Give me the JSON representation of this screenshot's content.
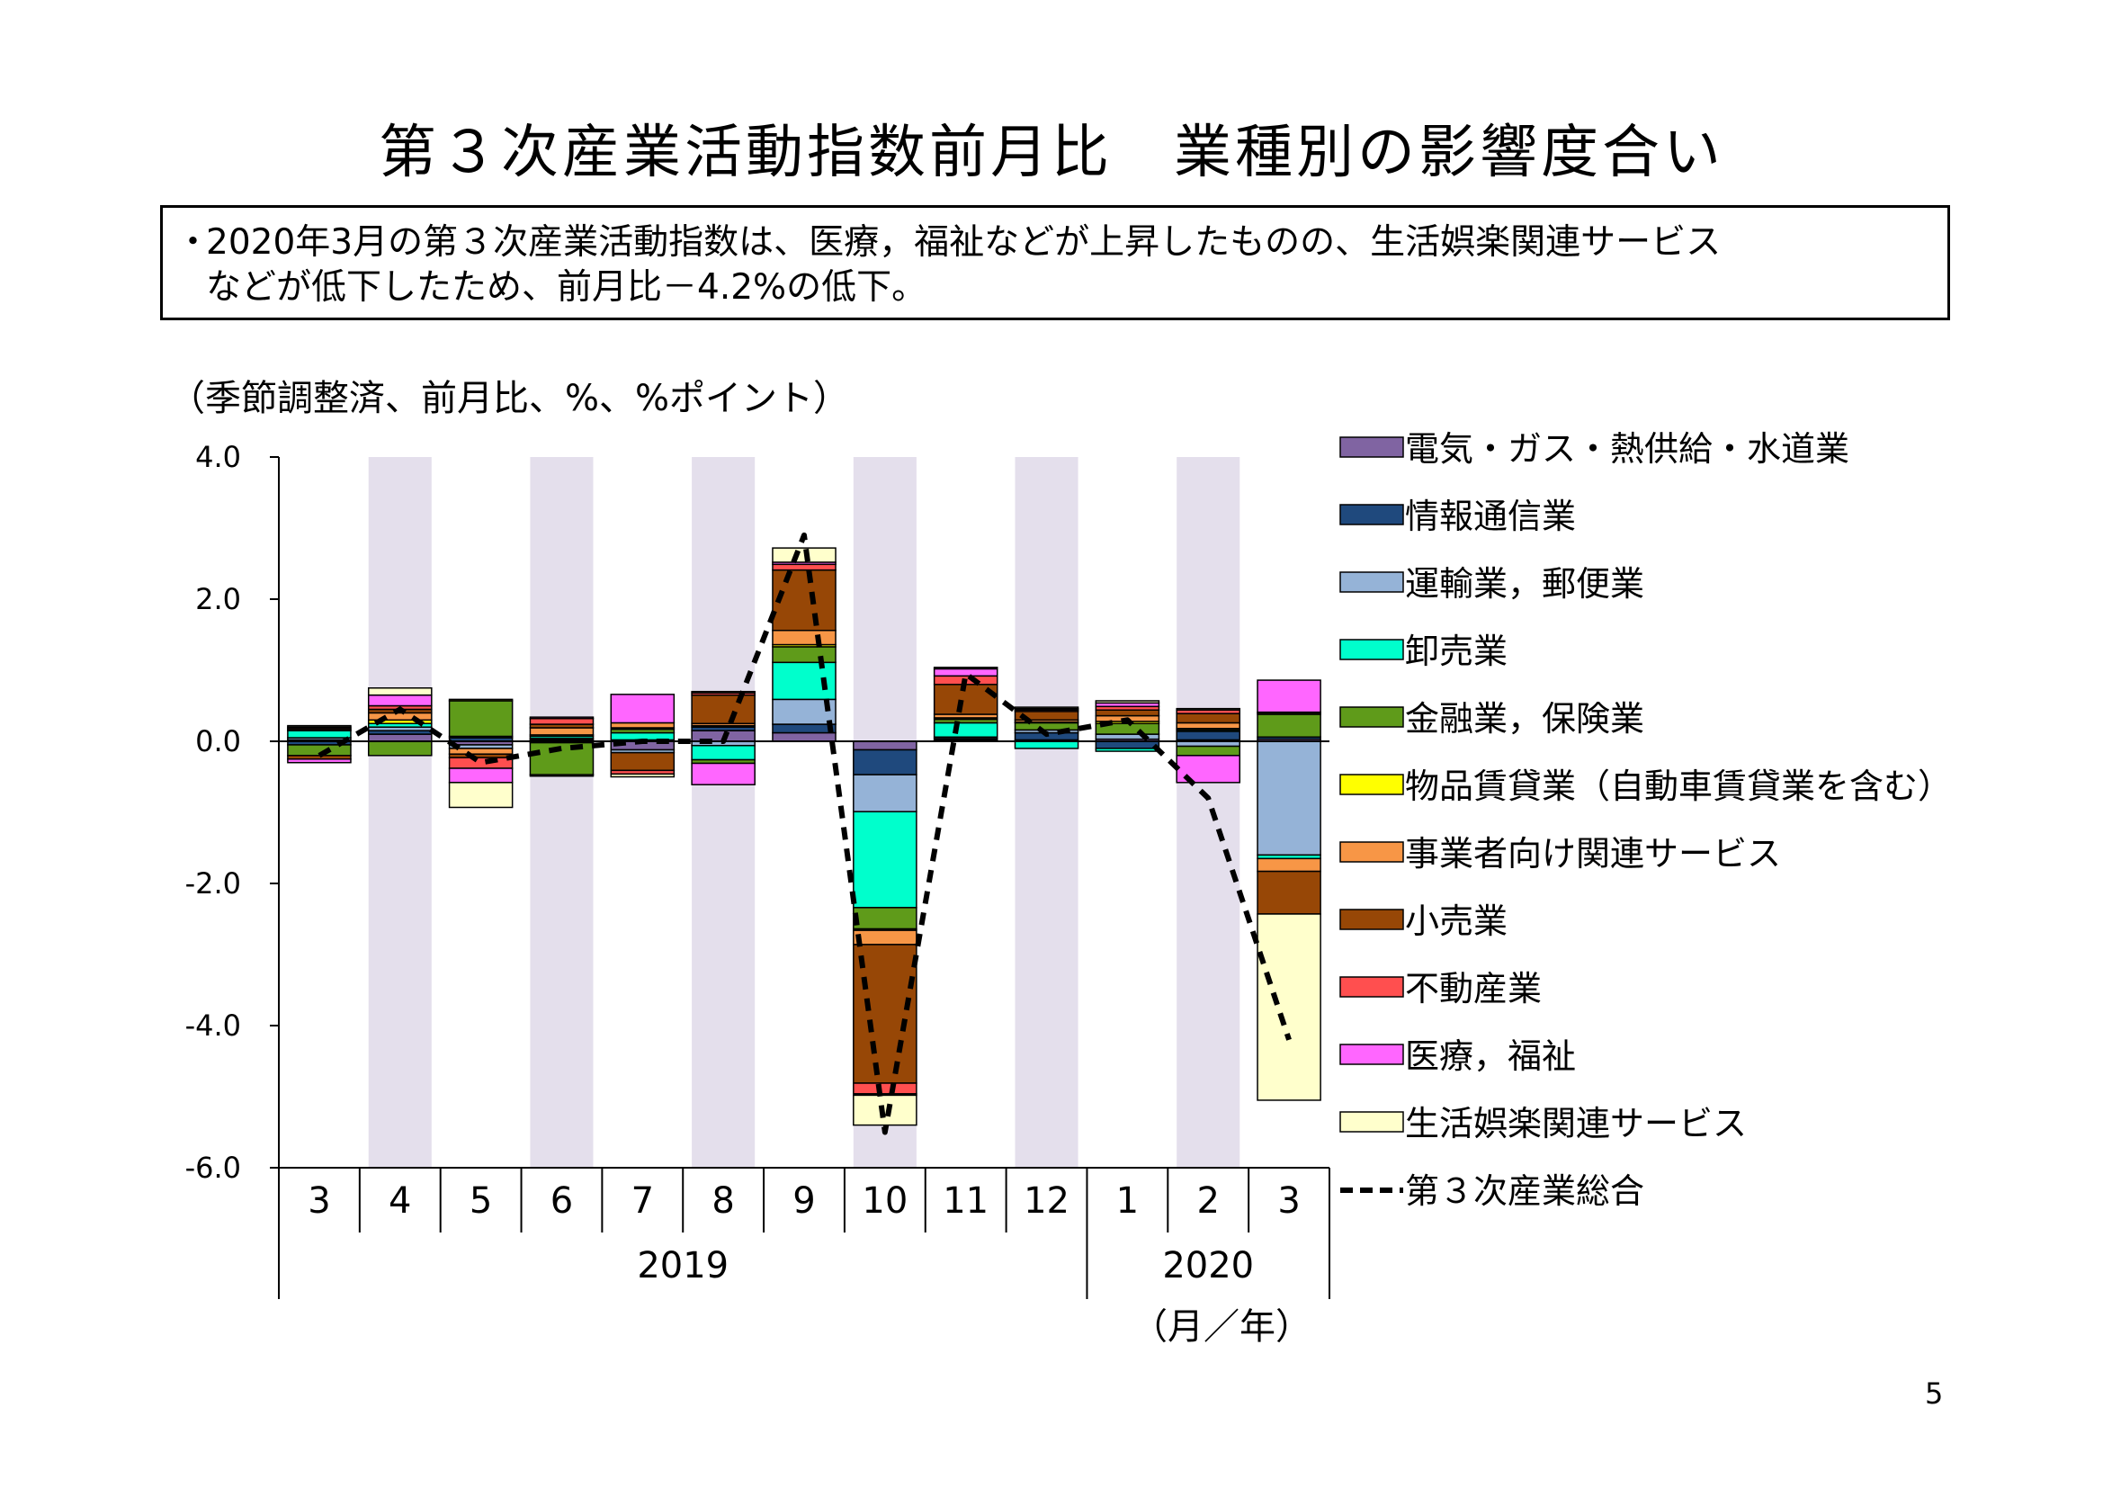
{
  "title": "第３次産業活動指数前月比　業種別の影響度合い",
  "summary": {
    "bullet": "・",
    "line1": "2020年3月の第３次産業活動指数は、医療，福祉などが上昇したものの、生活娯楽関連サービス",
    "line2": "などが低下したため、前月比－4.2%の低下。"
  },
  "unit_label": "（季節調整済、前月比、%、%ポイント）",
  "axis_unit": "（月／年）",
  "page_number": "5",
  "chart_data": {
    "type": "bar",
    "stacked": true,
    "ylim": [
      -6.0,
      4.0
    ],
    "yticks": [
      "4.0",
      "2.0",
      "0.0",
      "-2.0",
      "-4.0",
      "-6.0"
    ],
    "ytick_values": [
      4,
      2,
      0,
      -2,
      -4,
      -6
    ],
    "categories": [
      "3",
      "4",
      "5",
      "6",
      "7",
      "8",
      "9",
      "10",
      "11",
      "12",
      "1",
      "2",
      "3"
    ],
    "years": [
      {
        "label": "2019",
        "from": 0,
        "to": 9
      },
      {
        "label": "2020",
        "from": 10,
        "to": 12
      }
    ],
    "shaded_columns": [
      1,
      3,
      5,
      7,
      9,
      11
    ],
    "shade_color": "#e4dfec",
    "series": [
      {
        "name": "電気・ガス・熱供給・水道業",
        "color": "#8064a2",
        "values": [
          0.02,
          0.1,
          -0.05,
          0.02,
          -0.12,
          0.15,
          0.12,
          -0.12,
          0.02,
          0.02,
          0.03,
          0.02,
          0.03
        ]
      },
      {
        "name": "情報通信業",
        "color": "#1f497d",
        "values": [
          -0.05,
          0.05,
          0.05,
          0.02,
          0.02,
          0.05,
          0.12,
          -0.35,
          0.02,
          0.1,
          -0.1,
          0.12,
          0.03
        ]
      },
      {
        "name": "運輸業，郵便業",
        "color": "#95b3d7",
        "values": [
          0.03,
          0.05,
          -0.05,
          -0.02,
          -0.04,
          -0.06,
          0.35,
          -0.52,
          0.02,
          0.04,
          0.07,
          -0.07,
          -1.6
        ]
      },
      {
        "name": "卸売業",
        "color": "#00ffcc",
        "values": [
          0.1,
          0.05,
          0.02,
          0.03,
          0.1,
          -0.2,
          0.52,
          -1.35,
          0.2,
          -0.1,
          -0.04,
          0.02,
          -0.05
        ]
      },
      {
        "name": "金融業，保険業",
        "color": "#5f9b1a",
        "values": [
          -0.15,
          -0.2,
          0.5,
          -0.45,
          0.05,
          -0.05,
          0.22,
          -0.3,
          0.05,
          0.1,
          0.15,
          -0.13,
          0.32
        ]
      },
      {
        "name": "物品賃貸業（自動車賃貸業を含む）",
        "color": "#ffff00",
        "values": [
          0.01,
          0.05,
          0.02,
          0.02,
          0.02,
          0.02,
          0.03,
          -0.02,
          0.02,
          0.01,
          0.03,
          0.02,
          0.02
        ]
      },
      {
        "name": "事業者向け関連サービス",
        "color": "#f79646",
        "values": [
          0.02,
          0.1,
          -0.08,
          0.1,
          0.07,
          0.03,
          0.2,
          -0.2,
          0.05,
          0.03,
          0.08,
          0.08,
          -0.18
        ]
      },
      {
        "name": "小売業",
        "color": "#974706",
        "values": [
          -0.05,
          0.05,
          -0.05,
          0.05,
          -0.25,
          0.4,
          0.85,
          -1.95,
          0.42,
          0.12,
          0.08,
          0.13,
          -0.6
        ]
      },
      {
        "name": "不動産業",
        "color": "#ff4f4f",
        "values": [
          0.02,
          0.05,
          -0.15,
          0.08,
          -0.05,
          0.03,
          0.08,
          -0.15,
          0.12,
          0.02,
          0.05,
          0.05,
          0.01
        ]
      },
      {
        "name": "医療，福祉",
        "color": "#ff66ff",
        "values": [
          -0.05,
          0.15,
          -0.2,
          0.02,
          0.4,
          -0.3,
          0.03,
          -0.02,
          0.1,
          0.02,
          0.05,
          -0.38,
          0.45
        ]
      },
      {
        "name": "生活娯楽関連サービス",
        "color": "#ffffcc",
        "values": [
          0.02,
          0.1,
          -0.35,
          -0.02,
          -0.04,
          0.02,
          0.2,
          -0.42,
          0.02,
          0.02,
          0.03,
          0.02,
          -2.62
        ]
      }
    ],
    "total": {
      "name": "第３次産業総合",
      "color": "#000000",
      "values": [
        -0.2,
        0.45,
        -0.3,
        -0.1,
        0.0,
        0.0,
        2.9,
        -5.5,
        0.95,
        0.1,
        0.3,
        -0.8,
        -4.2
      ]
    }
  }
}
